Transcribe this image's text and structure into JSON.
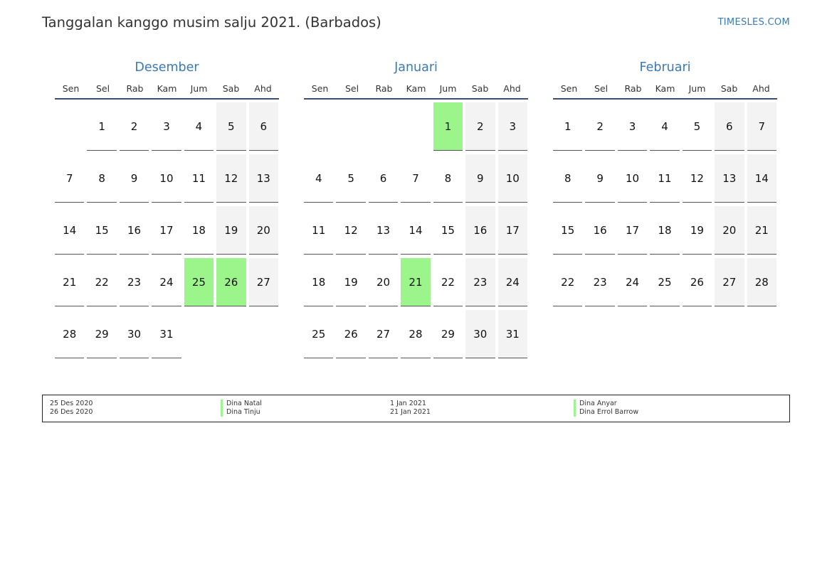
{
  "header": {
    "title": "Tanggalan kanggo musim salju 2021. (Barbados)",
    "brand": "TIMESLES.COM"
  },
  "colors": {
    "accent": "#3a7ab5",
    "holiday": "#9bf58a",
    "weekend": "#f3f3f3"
  },
  "weekdays": [
    "Sen",
    "Sel",
    "Rab",
    "Kam",
    "Jum",
    "Sab",
    "Ahd"
  ],
  "months": [
    {
      "name": "Desember",
      "offset": 1,
      "days": 31,
      "holidays": [
        25,
        26
      ]
    },
    {
      "name": "Januari",
      "offset": 4,
      "days": 31,
      "holidays": [
        1,
        21
      ]
    },
    {
      "name": "Februari",
      "offset": 0,
      "days": 28,
      "holidays": []
    }
  ],
  "legend": [
    {
      "dates": [
        "25 Des 2020",
        "26 Des 2020"
      ],
      "names": [
        "Dina Natal",
        "Dina Tinju"
      ]
    },
    {
      "dates": [
        "1 Jan 2021",
        "21 Jan 2021"
      ],
      "names": [
        "Dina Anyar",
        "Dina Errol Barrow"
      ]
    }
  ]
}
